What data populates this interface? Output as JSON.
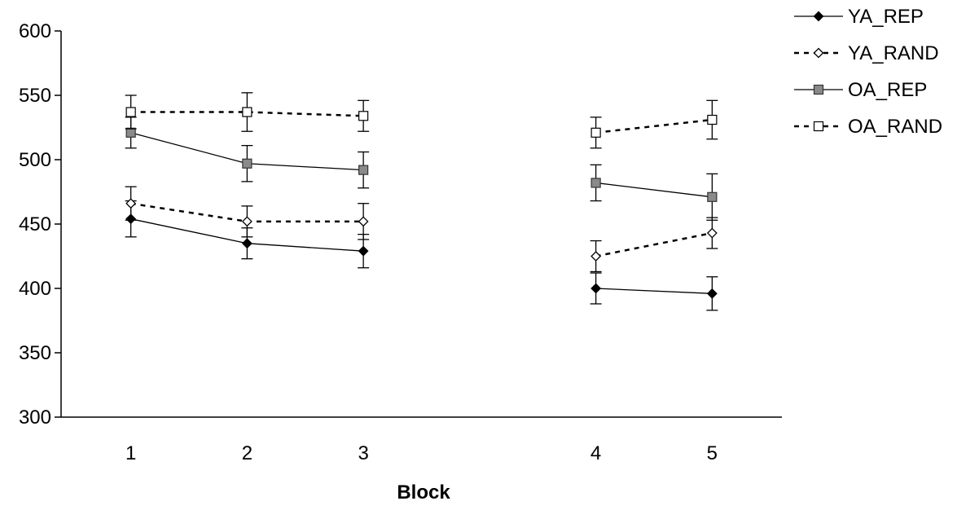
{
  "chart_data": {
    "type": "line",
    "title": "",
    "xlabel": "Block",
    "ylabel": "",
    "ylim": [
      300,
      600
    ],
    "yticks": [
      300,
      350,
      400,
      450,
      500,
      550,
      600
    ],
    "categories": [
      "1",
      "2",
      "3",
      "4",
      "5"
    ],
    "x_positions": [
      1,
      2,
      3,
      5,
      6
    ],
    "x_range": [
      0.4,
      6.6
    ],
    "grid": false,
    "legend_position": "top-right",
    "series": [
      {
        "name": "YA_REP",
        "color": "#000000",
        "line_style": "solid",
        "marker": "filled-diamond",
        "segments": [
          [
            0,
            1,
            2
          ],
          [
            3,
            4
          ]
        ],
        "values": [
          454,
          435,
          429,
          400,
          396
        ],
        "errors": [
          14,
          12,
          13,
          12,
          13
        ]
      },
      {
        "name": "YA_RAND",
        "color": "#000000",
        "line_style": "dashed",
        "marker": "open-diamond",
        "segments": [
          [
            0,
            1,
            2
          ],
          [
            3,
            4
          ]
        ],
        "values": [
          466,
          452,
          452,
          425,
          443
        ],
        "errors": [
          13,
          12,
          14,
          12,
          12
        ]
      },
      {
        "name": "OA_REP",
        "color": "#000000",
        "line_style": "solid",
        "marker": "gray-square",
        "segments": [
          [
            0,
            1,
            2
          ],
          [
            3,
            4
          ]
        ],
        "values": [
          521,
          497,
          492,
          482,
          471
        ],
        "errors": [
          12,
          14,
          14,
          14,
          18
        ]
      },
      {
        "name": "OA_RAND",
        "color": "#000000",
        "line_style": "dashed",
        "marker": "open-square",
        "segments": [
          [
            0,
            1,
            2
          ],
          [
            3,
            4
          ]
        ],
        "values": [
          537,
          537,
          534,
          521,
          531
        ],
        "errors": [
          13,
          15,
          12,
          12,
          15
        ]
      }
    ]
  }
}
